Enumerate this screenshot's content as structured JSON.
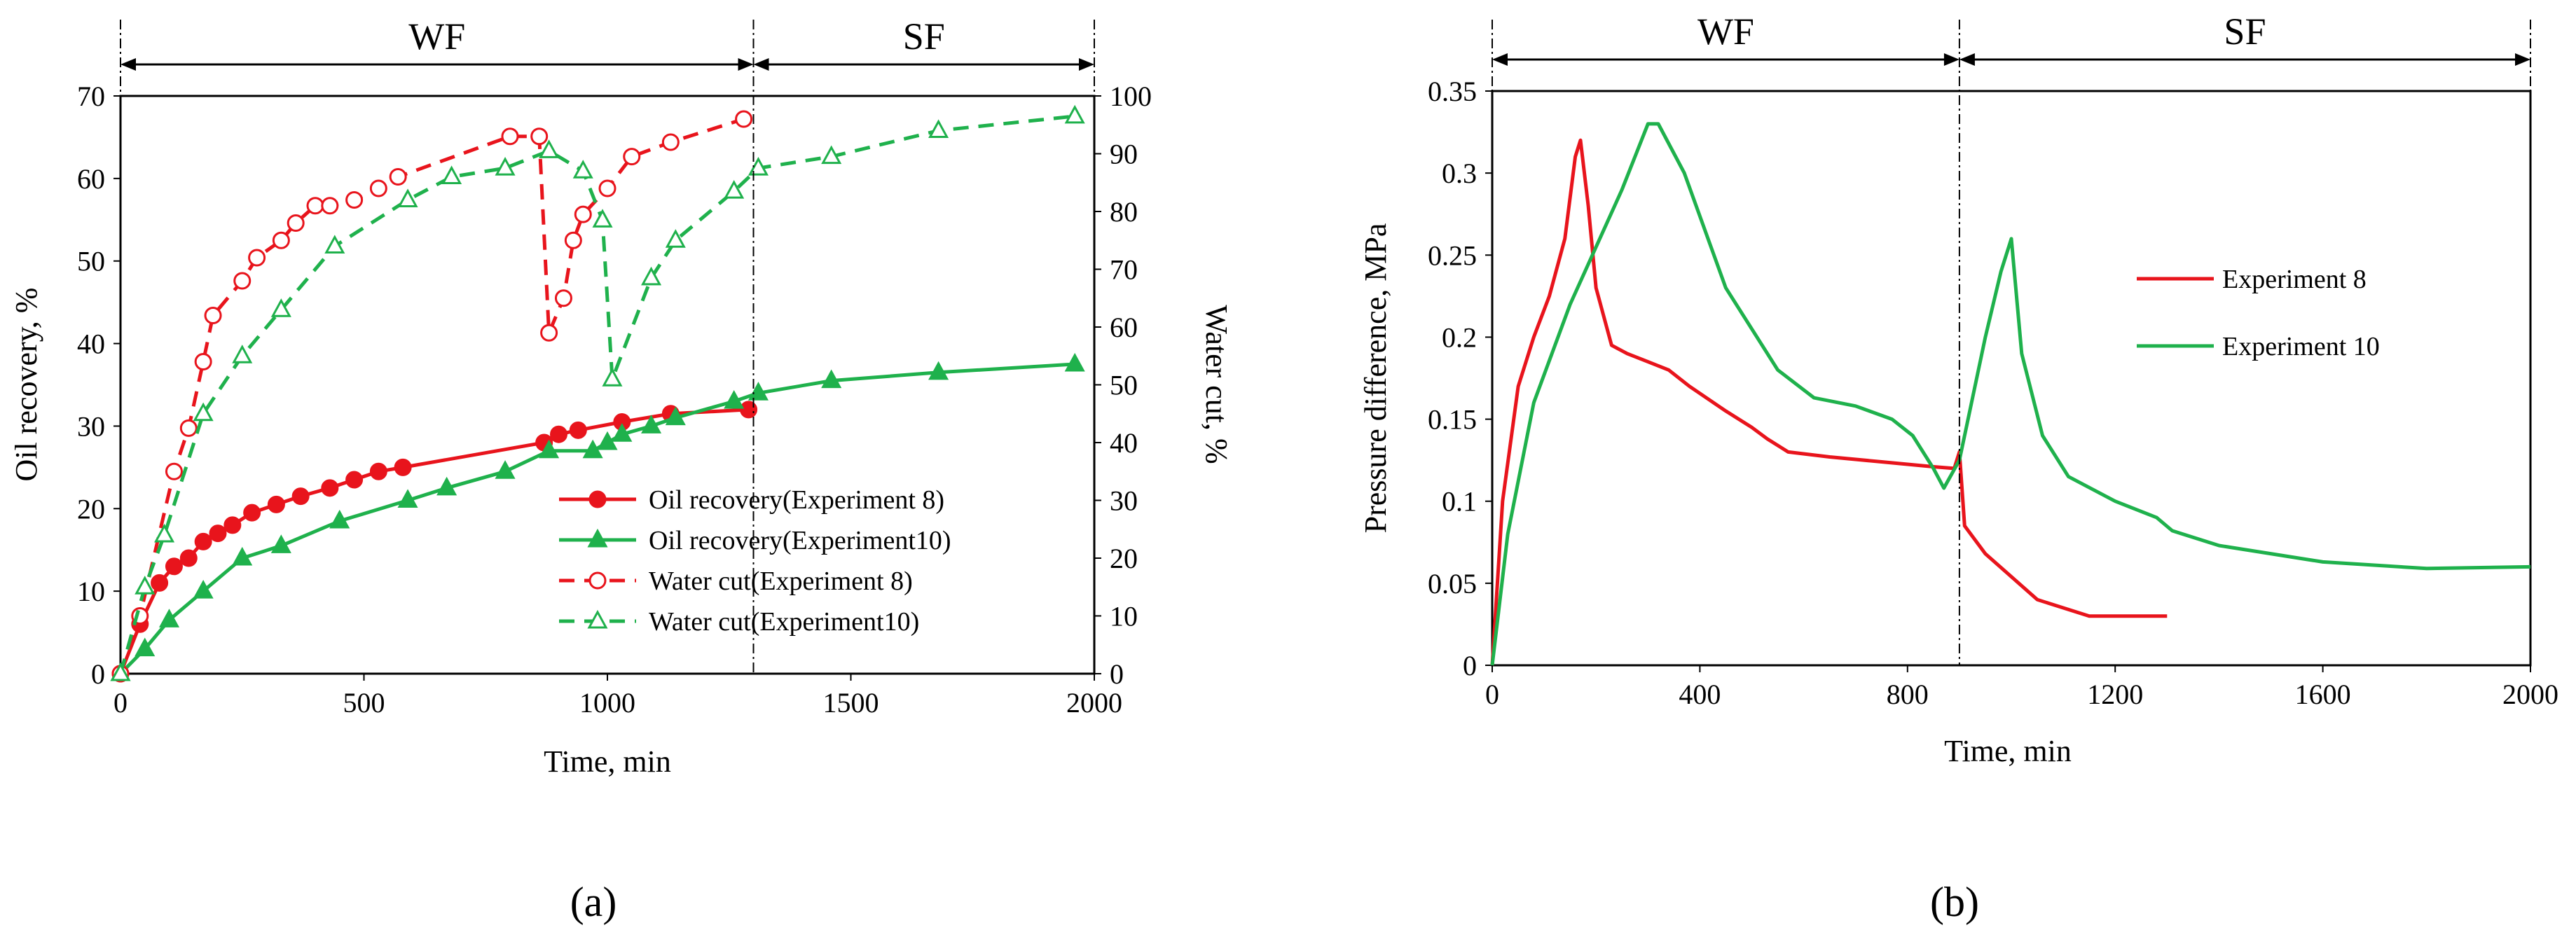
{
  "chart_data": [
    {
      "type": "line",
      "panel_label": "(a)",
      "xlabel": "Time, min",
      "ylabel": "Oil recovery, %",
      "y2label": "Water cut, %",
      "xlim": [
        0,
        2000
      ],
      "ylim": [
        0,
        70
      ],
      "y2lim": [
        0,
        100
      ],
      "x_ticks": [
        0,
        500,
        1000,
        1500,
        2000
      ],
      "y_ticks": [
        0,
        10,
        20,
        30,
        40,
        50,
        60,
        70
      ],
      "y2_ticks": [
        0,
        10,
        20,
        30,
        40,
        50,
        60,
        70,
        80,
        90,
        100
      ],
      "phases": [
        {
          "label": "WF",
          "from": 0,
          "to": 1300
        },
        {
          "label": "SF",
          "from": 1300,
          "to": 2000
        }
      ],
      "divider_x": 1300,
      "legend_position": "bottom-right",
      "series": [
        {
          "name": "Oil recovery(Experiment 8)",
          "axis": "left",
          "color": "#e8141c",
          "marker": "filled-circle",
          "dash": "solid",
          "x": [
            0,
            40,
            80,
            110,
            140,
            170,
            200,
            230,
            270,
            320,
            370,
            430,
            480,
            530,
            580,
            870,
            900,
            940,
            1030,
            1130,
            1290
          ],
          "y": [
            0,
            6,
            11,
            13,
            14,
            16,
            17,
            18,
            19.5,
            20.5,
            21.5,
            22.5,
            23.5,
            24.5,
            25,
            28,
            29,
            29.5,
            30.5,
            31.5,
            32
          ]
        },
        {
          "name": "Oil recovery(Experiment10)",
          "axis": "left",
          "color": "#1fb14c",
          "marker": "filled-triangle",
          "dash": "solid",
          "x": [
            0,
            50,
            100,
            170,
            250,
            330,
            450,
            590,
            670,
            790,
            880,
            970,
            1000,
            1030,
            1090,
            1140,
            1260,
            1310,
            1460,
            1680,
            1960
          ],
          "y": [
            0,
            3,
            6.5,
            10,
            14,
            15.5,
            18.5,
            21,
            22.5,
            24.5,
            27,
            27,
            28,
            29,
            30,
            31,
            33,
            34,
            35.5,
            36.5,
            37.5
          ]
        },
        {
          "name": "Water cut(Experiment 8)",
          "axis": "right",
          "color": "#e8141c",
          "marker": "open-circle",
          "dash": "dashed",
          "x": [
            0,
            40,
            110,
            140,
            170,
            190,
            250,
            280,
            330,
            360,
            400,
            430,
            480,
            530,
            570,
            800,
            860,
            880,
            910,
            930,
            950,
            1000,
            1050,
            1130,
            1280
          ],
          "y": [
            0,
            10,
            35,
            42.5,
            54,
            62,
            68,
            72,
            75,
            78,
            81,
            81,
            82,
            84,
            86,
            93,
            93,
            59,
            65,
            75,
            79.5,
            84,
            89.5,
            92,
            96
          ]
        },
        {
          "name": "Water cut(Experiment10)",
          "axis": "right",
          "color": "#1fb14c",
          "marker": "open-triangle",
          "dash": "dashed",
          "x": [
            0,
            50,
            90,
            170,
            250,
            330,
            440,
            590,
            680,
            790,
            880,
            950,
            990,
            1010,
            1090,
            1140,
            1260,
            1310,
            1460,
            1680,
            1960
          ],
          "y": [
            0,
            15,
            24,
            45,
            55,
            63,
            74,
            82,
            86,
            87.5,
            90.5,
            87,
            78.5,
            51,
            68.5,
            75,
            83.5,
            87.5,
            89.5,
            94,
            96.5
          ]
        }
      ]
    },
    {
      "type": "line",
      "panel_label": "(b)",
      "xlabel": "Time, min",
      "ylabel": "Pressure difference, MPa",
      "xlim": [
        0,
        2000
      ],
      "ylim": [
        0,
        0.35
      ],
      "x_ticks": [
        0,
        400,
        800,
        1200,
        1600,
        2000
      ],
      "y_ticks": [
        "0",
        "0.05",
        "0.1",
        "0.15",
        "0.2",
        "0.25",
        "0.3",
        "0.35"
      ],
      "phases": [
        {
          "label": "WF",
          "from": 0,
          "to": 900
        },
        {
          "label": "SF",
          "from": 900,
          "to": 2000
        }
      ],
      "divider_x": 900,
      "legend_position": "middle-right",
      "series": [
        {
          "name": "Experiment 8",
          "color": "#e8141c",
          "x": [
            0,
            20,
            50,
            80,
            110,
            140,
            160,
            170,
            185,
            200,
            230,
            260,
            300,
            340,
            380,
            450,
            500,
            530,
            570,
            650,
            750,
            850,
            890,
            900,
            910,
            950,
            1050,
            1150,
            1300
          ],
          "y": [
            0,
            0.1,
            0.17,
            0.2,
            0.225,
            0.26,
            0.31,
            0.32,
            0.28,
            0.23,
            0.195,
            0.19,
            0.185,
            0.18,
            0.17,
            0.155,
            0.145,
            0.138,
            0.13,
            0.127,
            0.124,
            0.121,
            0.12,
            0.13,
            0.085,
            0.068,
            0.04,
            0.03,
            0.03
          ]
        },
        {
          "name": "Experiment 10",
          "color": "#1fb14c",
          "x": [
            0,
            30,
            80,
            150,
            250,
            300,
            320,
            370,
            450,
            550,
            620,
            700,
            770,
            810,
            850,
            870,
            900,
            950,
            980,
            1000,
            1020,
            1060,
            1110,
            1200,
            1280,
            1310,
            1400,
            1600,
            1800,
            2000
          ],
          "y": [
            0,
            0.08,
            0.16,
            0.22,
            0.29,
            0.33,
            0.33,
            0.3,
            0.23,
            0.18,
            0.163,
            0.158,
            0.15,
            0.14,
            0.12,
            0.108,
            0.125,
            0.2,
            0.24,
            0.26,
            0.19,
            0.14,
            0.115,
            0.1,
            0.09,
            0.082,
            0.073,
            0.063,
            0.059,
            0.06
          ]
        }
      ]
    }
  ]
}
